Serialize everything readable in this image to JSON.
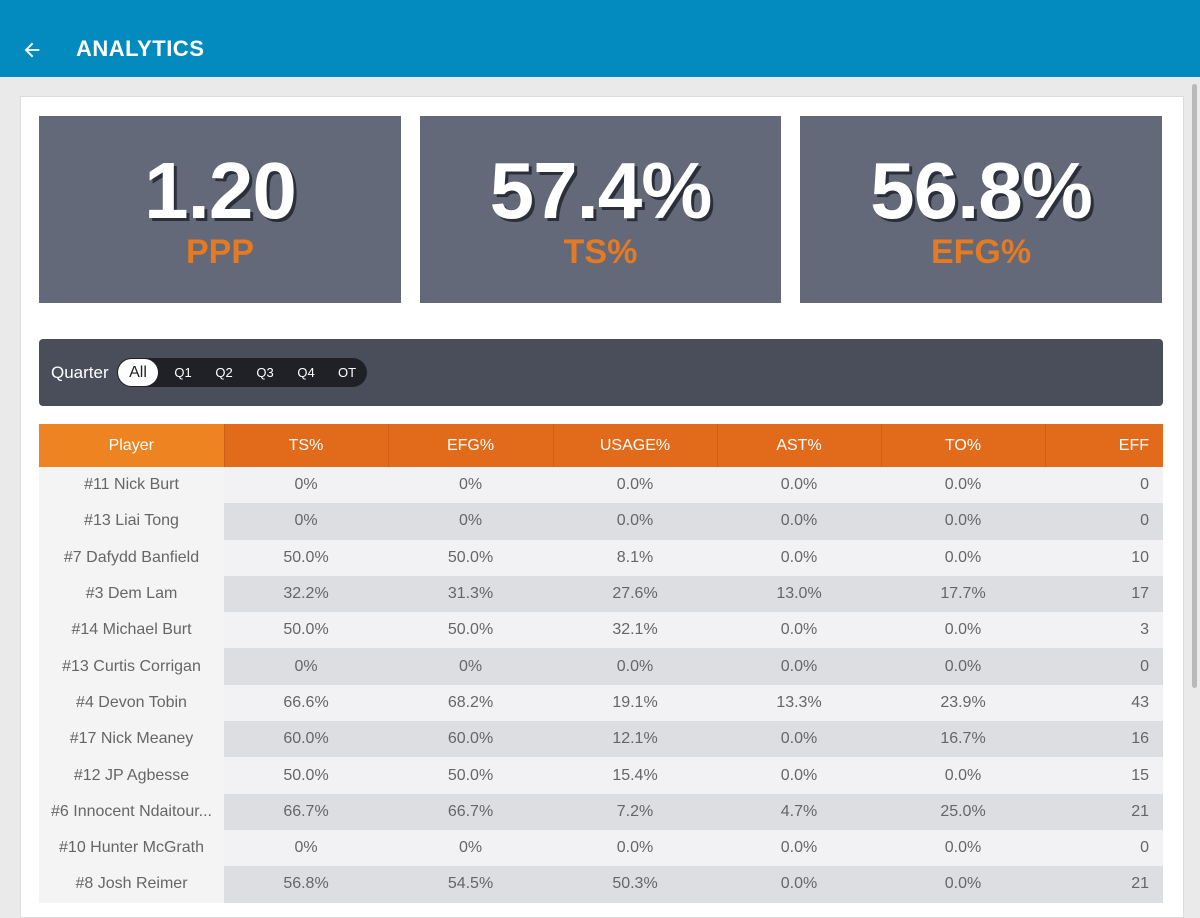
{
  "header": {
    "title": "ANALYTICS",
    "back_icon": "arrow-left-icon"
  },
  "stats": [
    {
      "value": "1.20",
      "label": "PPP"
    },
    {
      "value": "57.4%",
      "label": "TS%"
    },
    {
      "value": "56.8%",
      "label": "EFG%"
    }
  ],
  "filter": {
    "label": "Quarter",
    "options": [
      "All",
      "Q1",
      "Q2",
      "Q3",
      "Q4",
      "OT"
    ],
    "selected": "All"
  },
  "table": {
    "columns": [
      "Player",
      "TS%",
      "EFG%",
      "USAGE%",
      "AST%",
      "TO%",
      "EFF"
    ],
    "rows": [
      [
        "#11 Nick Burt",
        "0%",
        "0%",
        "0.0%",
        "0.0%",
        "0.0%",
        "0"
      ],
      [
        "#13 Liai Tong",
        "0%",
        "0%",
        "0.0%",
        "0.0%",
        "0.0%",
        "0"
      ],
      [
        "#7 Dafydd Banfield",
        "50.0%",
        "50.0%",
        "8.1%",
        "0.0%",
        "0.0%",
        "10"
      ],
      [
        "#3 Dem Lam",
        "32.2%",
        "31.3%",
        "27.6%",
        "13.0%",
        "17.7%",
        "17"
      ],
      [
        "#14 Michael Burt",
        "50.0%",
        "50.0%",
        "32.1%",
        "0.0%",
        "0.0%",
        "3"
      ],
      [
        "#13 Curtis Corrigan",
        "0%",
        "0%",
        "0.0%",
        "0.0%",
        "0.0%",
        "0"
      ],
      [
        "#4 Devon Tobin",
        "66.6%",
        "68.2%",
        "19.1%",
        "13.3%",
        "23.9%",
        "43"
      ],
      [
        "#17 Nick Meaney",
        "60.0%",
        "60.0%",
        "12.1%",
        "0.0%",
        "16.7%",
        "16"
      ],
      [
        "#12 JP Agbesse",
        "50.0%",
        "50.0%",
        "15.4%",
        "0.0%",
        "0.0%",
        "15"
      ],
      [
        "#6 Innocent Ndaitour...",
        "66.7%",
        "66.7%",
        "7.2%",
        "4.7%",
        "25.0%",
        "21"
      ],
      [
        "#10 Hunter McGrath",
        "0%",
        "0%",
        "0.0%",
        "0.0%",
        "0.0%",
        "0"
      ],
      [
        "#8 Josh Reimer",
        "56.8%",
        "54.5%",
        "50.3%",
        "0.0%",
        "0.0%",
        "21"
      ]
    ]
  },
  "colors": {
    "appbar": "#038bbf",
    "accent": "#e26a1b",
    "card": "#636978",
    "filter_bar": "#4a4e5a"
  }
}
